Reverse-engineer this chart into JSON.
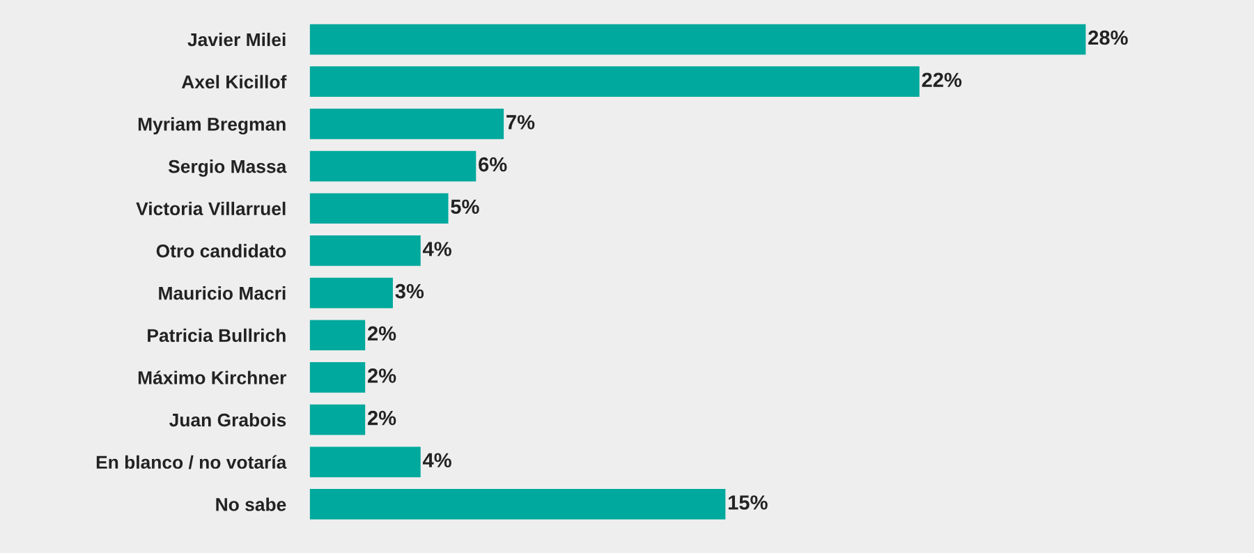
{
  "chart_data": {
    "type": "bar",
    "orientation": "horizontal",
    "categories": [
      "Javier Milei",
      "Axel Kicillof",
      "Myriam Bregman",
      "Sergio Massa",
      "Victoria Villarruel",
      "Otro candidato",
      "Mauricio Macri",
      "Patricia Bullrich",
      "Máximo Kirchner",
      "Juan Grabois",
      "En blanco / no votaría",
      "No sabe"
    ],
    "values": [
      28,
      22,
      7,
      6,
      5,
      4,
      3,
      2,
      2,
      2,
      4,
      15
    ],
    "value_labels": [
      "28%",
      "22%",
      "7%",
      "6%",
      "5%",
      "4%",
      "3%",
      "2%",
      "2%",
      "2%",
      "4%",
      "15%"
    ],
    "color": "#00a99d",
    "grid": false,
    "legend": false,
    "tick_labels": "y"
  }
}
